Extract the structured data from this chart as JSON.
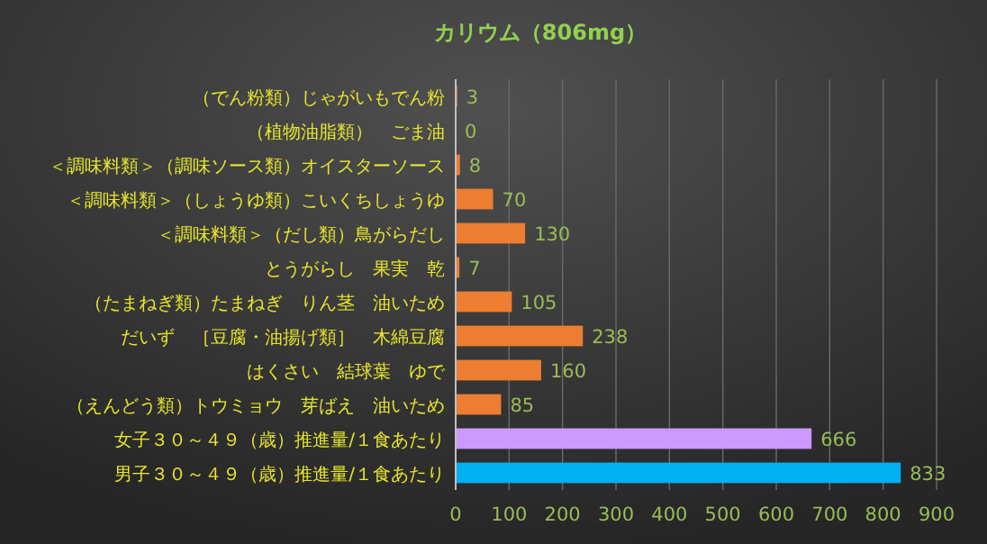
{
  "chart_data": {
    "type": "bar",
    "orientation": "horizontal",
    "title": "カリウム（806mg）",
    "categories": [
      "（でん粉類）じゃがいもでん粉",
      "（植物油脂類）　ごま油",
      "＜調味料類＞（調味ソース類）オイスターソース",
      "＜調味料類＞（しょうゆ類）こいくちしょうゆ",
      "＜調味料類＞（だし類）鳥がらだし",
      "とうがらし　果実　乾",
      "（たまねぎ類）たまねぎ　りん茎　油いため",
      "だいず　［豆腐・油揚げ類］　木綿豆腐",
      "はくさい　結球葉　ゆで",
      "（えんどう類）トウミョウ　芽ばえ　油いため",
      "女子３０～４９（歳）推進量/１食あたり",
      "男子３０～４９（歳）推進量/１食あたり"
    ],
    "values": [
      3,
      0,
      8,
      70,
      130,
      7,
      105,
      238,
      160,
      85,
      666,
      833
    ],
    "colors": [
      "#ed7d31",
      "#ed7d31",
      "#ed7d31",
      "#ed7d31",
      "#ed7d31",
      "#ed7d31",
      "#ed7d31",
      "#ed7d31",
      "#ed7d31",
      "#ed7d31",
      "#cc99ff",
      "#00b0f0"
    ],
    "xlim": [
      0,
      900
    ],
    "xticks": [
      0,
      100,
      200,
      300,
      400,
      500,
      600,
      700,
      800,
      900
    ],
    "grid": "x",
    "data_labels": true
  }
}
